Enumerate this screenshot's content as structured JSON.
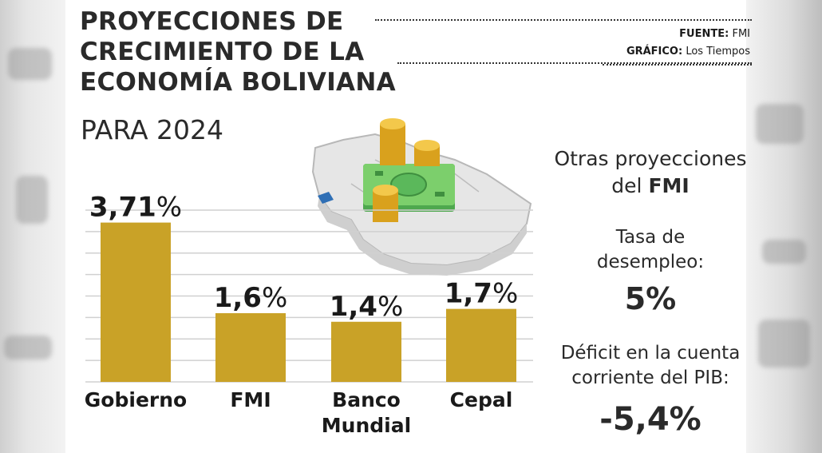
{
  "header": {
    "title_lines": [
      "PROYECCIONES DE",
      "CRECIMIENTO DE LA",
      "ECONOMÍA BOLIVIANA"
    ],
    "subtitle": "PARA 2024",
    "source_label": "FUENTE:",
    "source_value": "FMI",
    "graphic_label": "GRÁFICO:",
    "graphic_value": "Los Tiempos"
  },
  "chart_data": {
    "type": "bar",
    "categories": [
      "Gobierno",
      "FMI",
      "Banco Mundial",
      "Cepal"
    ],
    "category_label_lines": [
      [
        "Gobierno"
      ],
      [
        "FMI"
      ],
      [
        "Banco",
        "Mundial"
      ],
      [
        "Cepal"
      ]
    ],
    "values": [
      3.71,
      1.6,
      1.4,
      1.7
    ],
    "value_labels": [
      "3,71%",
      "1,6%",
      "1,4%",
      "1,7%"
    ],
    "ylim": [
      0,
      4
    ],
    "grid": true,
    "bar_color": "#c9a227",
    "title": "",
    "xlabel": "",
    "ylabel": ""
  },
  "side_panel": {
    "heading_line1": "Otras proyecciones",
    "heading_line2_prefix": "del",
    "heading_line2_bold": "FMI",
    "unemployment_label_line1": "Tasa de",
    "unemployment_label_line2": "desempleo:",
    "unemployment_value": "5%",
    "deficit_label_line1": "Déficit en la cuenta",
    "deficit_label_line2": "corriente del PIB:",
    "deficit_value": "-5,4%"
  },
  "colors": {
    "accent_gold": "#c9a227",
    "text_dark": "#2a2a2a",
    "map_grey": "#e4e4e4",
    "money_green": "#5bb85b"
  }
}
